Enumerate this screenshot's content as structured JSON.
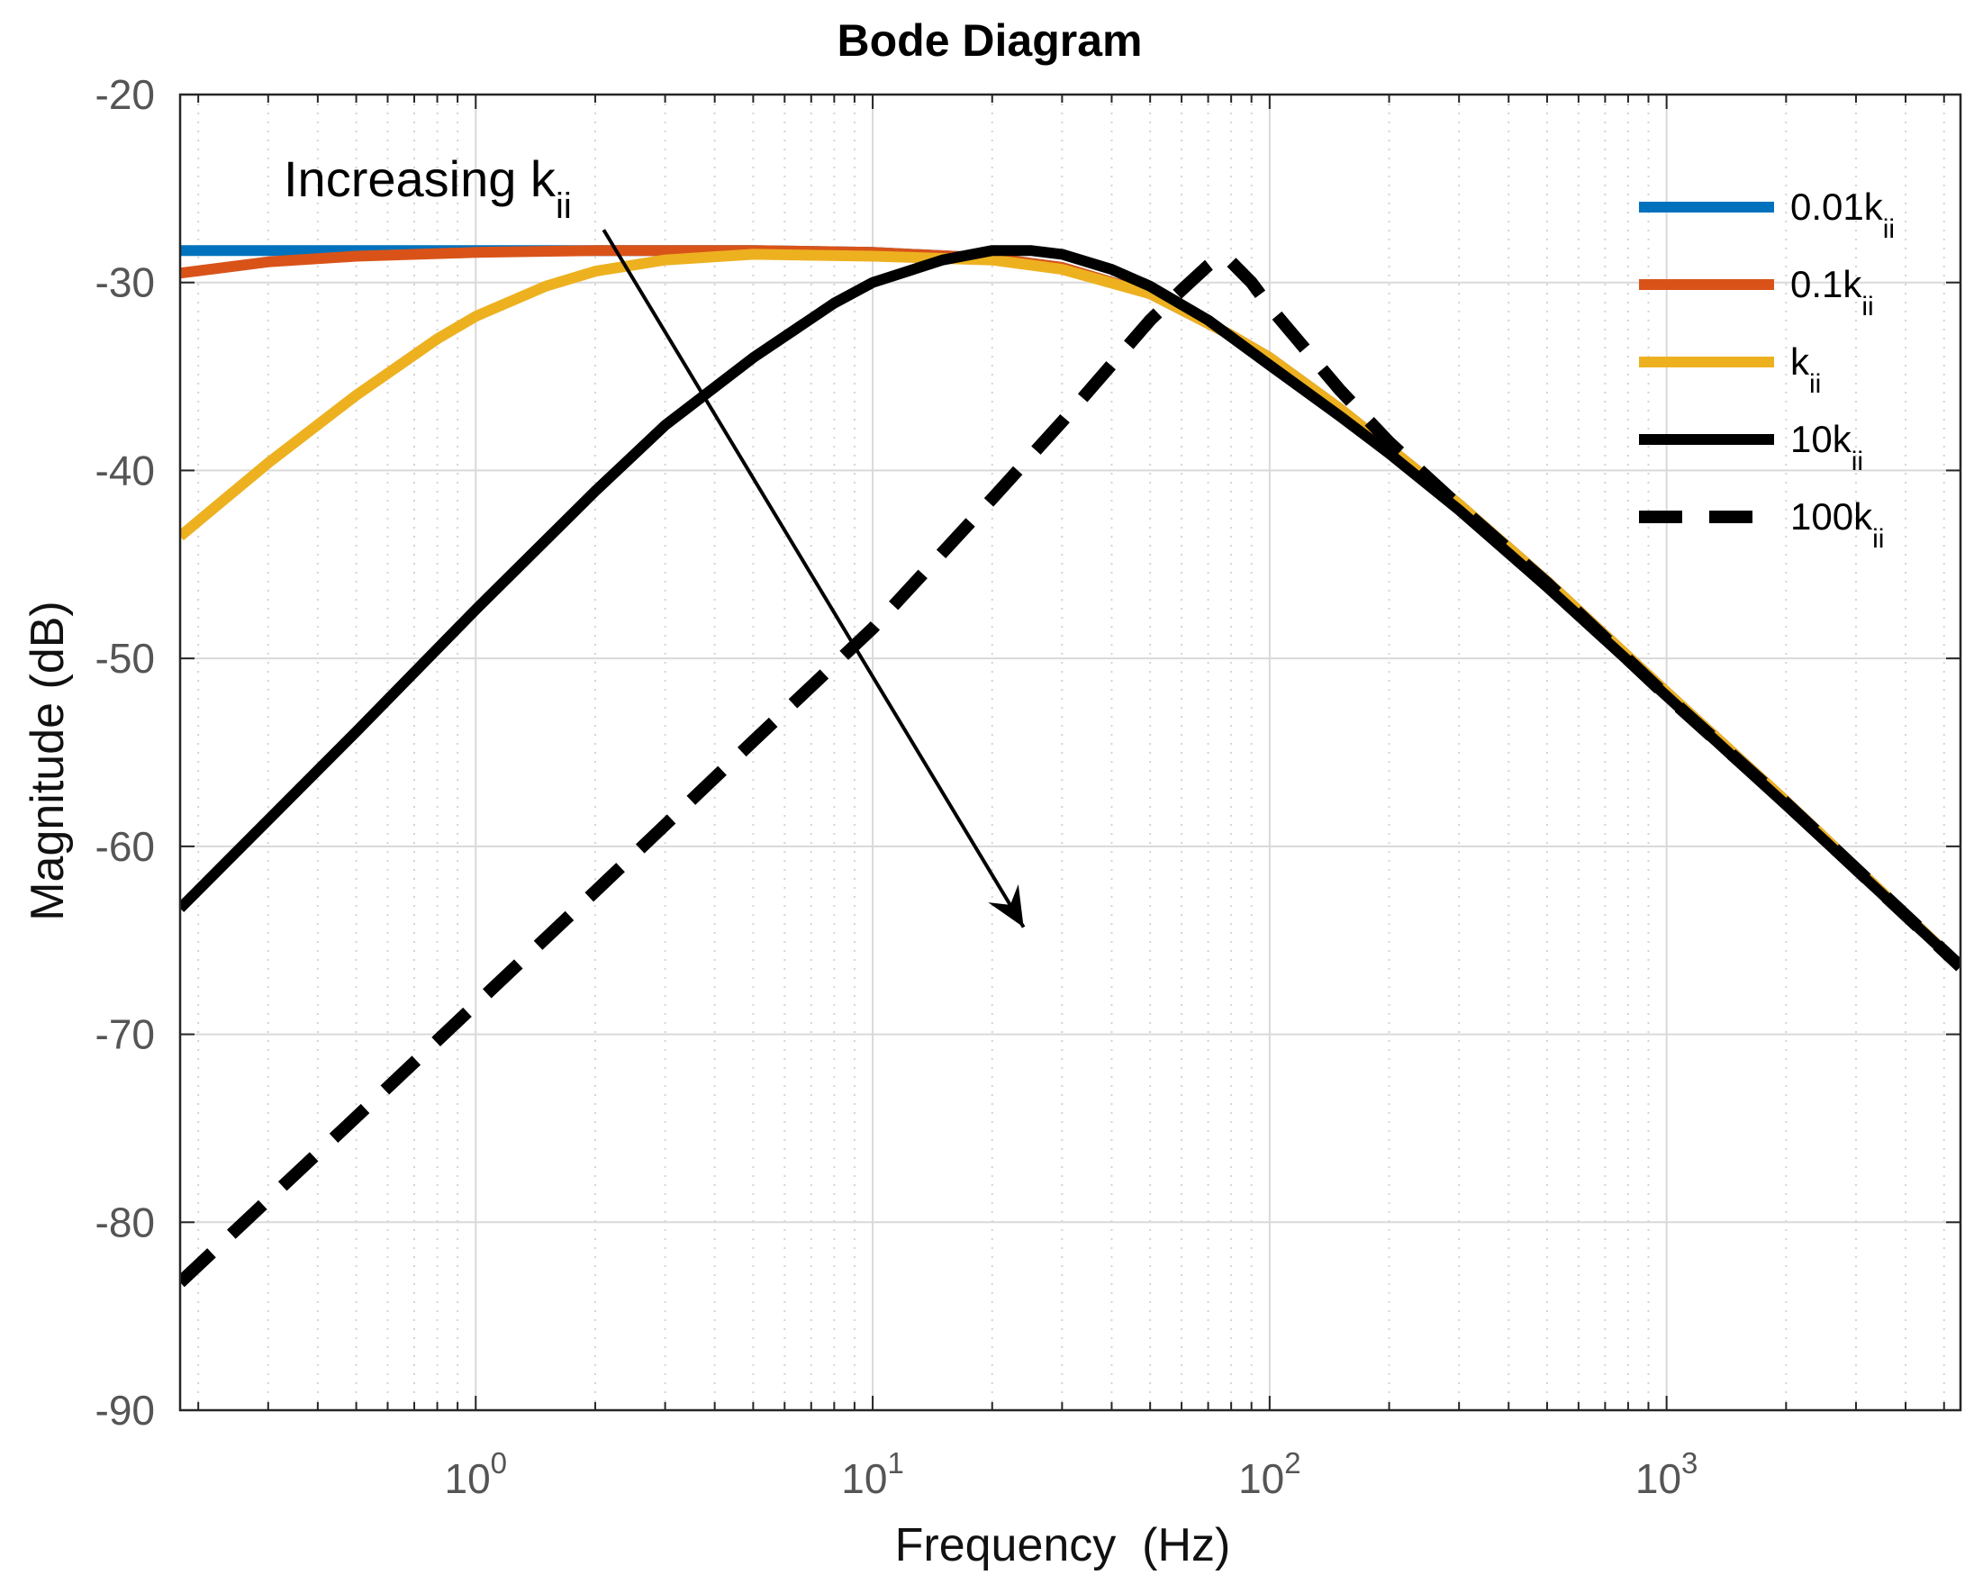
{
  "chart_data": {
    "type": "line",
    "title": "Bode Diagram",
    "xlabel": "Frequency  (Hz)",
    "ylabel": "Magnitude (dB)",
    "xscale": "log",
    "xlim": [
      0.18,
      5500
    ],
    "ylim": [
      -90,
      -20
    ],
    "grid": true,
    "xticks": [
      {
        "value": 1,
        "base": "10",
        "exp": "0"
      },
      {
        "value": 10,
        "base": "10",
        "exp": "1"
      },
      {
        "value": 100,
        "base": "10",
        "exp": "2"
      },
      {
        "value": 1000,
        "base": "10",
        "exp": "3"
      }
    ],
    "yticks": [
      -20,
      -30,
      -40,
      -50,
      -60,
      -70,
      -80,
      -90
    ],
    "annotation": {
      "text": "Increasing k",
      "sub": "ii",
      "from": [
        2.1,
        -27.2
      ],
      "to": [
        24,
        -64.3
      ]
    },
    "series": [
      {
        "name": "0.01k",
        "sub": "ii",
        "color": "#0072BD",
        "dash": false,
        "x": [
          0.18,
          5,
          10,
          20,
          30,
          50,
          80,
          100,
          150,
          200,
          300,
          500,
          1000,
          2000,
          5500
        ],
        "y": [
          -28.3,
          -28.3,
          -28.4,
          -28.7,
          -29.2,
          -30.6,
          -32.8,
          -34.0,
          -36.7,
          -38.8,
          -41.8,
          -45.9,
          -51.8,
          -57.6,
          -66.4
        ]
      },
      {
        "name": "0.1k",
        "sub": "ii",
        "color": "#D95319",
        "dash": false,
        "x": [
          0.18,
          0.3,
          0.5,
          1,
          2,
          5,
          10,
          20,
          30,
          50,
          80,
          100,
          150,
          200,
          300,
          500,
          1000,
          2000,
          5500
        ],
        "y": [
          -29.5,
          -28.9,
          -28.6,
          -28.4,
          -28.3,
          -28.3,
          -28.4,
          -28.7,
          -29.2,
          -30.6,
          -32.8,
          -34.0,
          -36.7,
          -38.8,
          -41.8,
          -45.9,
          -51.8,
          -57.6,
          -66.4
        ]
      },
      {
        "name": "k",
        "sub": "ii",
        "color": "#EDB120",
        "dash": false,
        "x": [
          0.18,
          0.3,
          0.5,
          0.8,
          1,
          1.5,
          2,
          3,
          5,
          10,
          20,
          30,
          50,
          80,
          100,
          150,
          200,
          300,
          500,
          1000,
          2000,
          5500
        ],
        "y": [
          -43.5,
          -39.6,
          -36.0,
          -33.0,
          -31.8,
          -30.2,
          -29.4,
          -28.8,
          -28.5,
          -28.6,
          -28.8,
          -29.3,
          -30.6,
          -32.8,
          -34.0,
          -36.7,
          -38.8,
          -41.8,
          -45.9,
          -51.8,
          -57.6,
          -66.4
        ]
      },
      {
        "name": "10k",
        "sub": "ii",
        "color": "#000000",
        "dash": false,
        "x": [
          0.18,
          0.3,
          0.5,
          1,
          2,
          3,
          5,
          8,
          10,
          15,
          20,
          25,
          30,
          40,
          50,
          70,
          100,
          150,
          200,
          300,
          500,
          1000,
          2000,
          5500
        ],
        "y": [
          -63.3,
          -58.6,
          -53.9,
          -47.4,
          -41.1,
          -37.6,
          -34.0,
          -31.1,
          -30.0,
          -28.8,
          -28.3,
          -28.3,
          -28.5,
          -29.3,
          -30.2,
          -32.0,
          -34.4,
          -37.1,
          -39.1,
          -42.1,
          -46.2,
          -52.0,
          -57.8,
          -66.4
        ]
      },
      {
        "name": "100k",
        "sub": "ii",
        "color": "#000000",
        "dash": true,
        "x": [
          0.18,
          0.3,
          0.5,
          1,
          2,
          5,
          10,
          20,
          30,
          50,
          60,
          70,
          75,
          80,
          90,
          100,
          150,
          200,
          300,
          500,
          1000,
          2000,
          5500
        ],
        "y": [
          -83.2,
          -78.8,
          -74.4,
          -68.4,
          -62.4,
          -54.4,
          -48.4,
          -41.5,
          -37.4,
          -32.0,
          -30.4,
          -29.1,
          -28.6,
          -28.9,
          -30.0,
          -31.3,
          -35.7,
          -38.5,
          -41.9,
          -46.0,
          -52.0,
          -57.7,
          -66.4
        ]
      }
    ]
  }
}
